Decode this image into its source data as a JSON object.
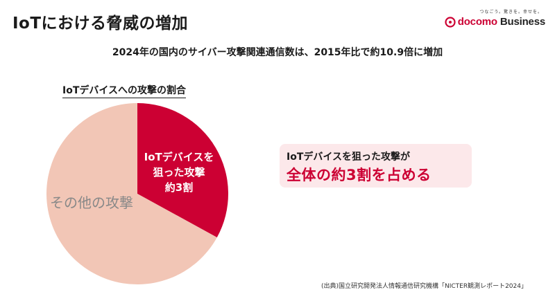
{
  "header": {
    "title": "IoTにおける脅威の増加",
    "brand_tagline": "つなごう。驚きを。幸せを。",
    "brand_name": "docomo",
    "brand_suffix": "Business"
  },
  "subtitle": "2024年の国内のサイバー攻撃関連通信数は、2015年比で約10.9倍に増加",
  "callout": {
    "line1": "IoTデバイスを狙った攻撃が",
    "line2": "全体の約3割を占める"
  },
  "source": "(出典)国立研究開発法人情報通信研究機構「NICTER観測レポート2024」",
  "chart_data": {
    "type": "pie",
    "title": "IoTデバイスへの攻撃の割合",
    "slices": [
      {
        "label_lines": [
          "IoTデバイスを",
          "狙った攻撃",
          "約3割"
        ],
        "value": 33,
        "color": "#cc0033",
        "text_color": "#ffffff"
      },
      {
        "label_lines": [
          "その他の攻撃"
        ],
        "value": 67,
        "color": "#f2c6b6",
        "text_color": "#888888"
      }
    ]
  }
}
